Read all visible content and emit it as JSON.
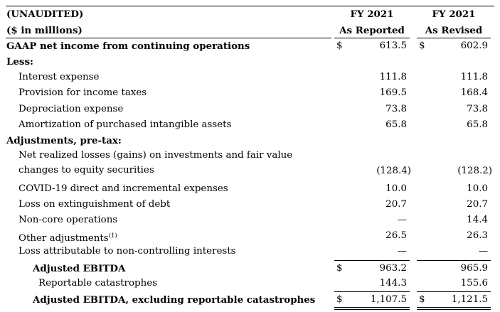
{
  "header": {
    "unaudited": "(UNAUDITED)",
    "units": "($ in millions)",
    "col1": {
      "year": "FY 2021",
      "label": "As Reported"
    },
    "col2": {
      "year": "FY 2021",
      "label": "As Revised"
    }
  },
  "currency_symbol": "$",
  "rows": {
    "gaap_net_income": {
      "label": "GAAP net income from continuing operations",
      "reported": "613.5",
      "revised": "602.9"
    },
    "less_heading": {
      "label": "Less:"
    },
    "interest_expense": {
      "label": "Interest expense",
      "reported": "111.8",
      "revised": "111.8"
    },
    "provision_income_taxes": {
      "label": "Provision for income taxes",
      "reported": "169.5",
      "revised": "168.4"
    },
    "depreciation_expense": {
      "label": "Depreciation expense",
      "reported": "73.8",
      "revised": "73.8"
    },
    "amortization": {
      "label": "Amortization of purchased intangible assets",
      "reported": "65.8",
      "revised": "65.8"
    },
    "adjustments_heading": {
      "label": "Adjustments, pre-tax:"
    },
    "net_realized_losses": {
      "label_line1": "Net realized losses (gains) on investments and fair value",
      "label_line2": "changes to equity securities",
      "reported": "(128.4)",
      "revised": "(128.2)"
    },
    "covid": {
      "label": "COVID-19 direct and incremental expenses",
      "reported": "10.0",
      "revised": "10.0"
    },
    "loss_extinguishment": {
      "label": "Loss on extinguishment of debt",
      "reported": "20.7",
      "revised": "20.7"
    },
    "non_core": {
      "label": "Non-core operations",
      "reported": "—",
      "revised": "14.4"
    },
    "other_adjustments": {
      "label": "Other adjustments",
      "footnote": "(1)",
      "reported": "26.5",
      "revised": "26.3"
    },
    "non_controlling": {
      "label": "Loss attributable to non-controlling interests",
      "reported": "—",
      "revised": "—"
    },
    "adjusted_ebitda": {
      "label": "Adjusted EBITDA",
      "reported": "963.2",
      "revised": "965.9"
    },
    "reportable_catastrophes": {
      "label": "Reportable catastrophes",
      "reported": "144.3",
      "revised": "155.6"
    },
    "adjusted_ebitda_ex_cat": {
      "label": "Adjusted EBITDA, excluding reportable catastrophes",
      "reported": "1,107.5",
      "revised": "1,121.5"
    }
  }
}
